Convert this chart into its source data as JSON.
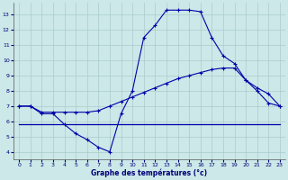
{
  "xlabel": "Graphe des températures (°c)",
  "bg_color": "#cce8e8",
  "line_color": "#0000aa",
  "grid_color": "#aacccc",
  "x_ticks": [
    0,
    1,
    2,
    3,
    4,
    5,
    6,
    7,
    8,
    9,
    10,
    11,
    12,
    13,
    14,
    15,
    16,
    17,
    18,
    19,
    20,
    21,
    22,
    23
  ],
  "y_ticks": [
    4,
    5,
    6,
    7,
    8,
    9,
    10,
    11,
    12,
    13
  ],
  "ylim": [
    3.5,
    13.8
  ],
  "xlim": [
    -0.5,
    23.5
  ],
  "line1_x": [
    0,
    1,
    2,
    3,
    4,
    5,
    6,
    7,
    8,
    9,
    10,
    11,
    12,
    13,
    14,
    15,
    16,
    17,
    18,
    19,
    20,
    21,
    22,
    23
  ],
  "line1_y": [
    7.0,
    7.0,
    6.5,
    6.5,
    5.8,
    5.2,
    4.8,
    4.3,
    4.0,
    6.5,
    8.0,
    11.5,
    12.3,
    13.3,
    13.3,
    13.3,
    13.2,
    11.5,
    10.3,
    9.8,
    8.7,
    8.0,
    7.2,
    7.0
  ],
  "line2_x": [
    0,
    1,
    2,
    3,
    4,
    5,
    6,
    7,
    8,
    9,
    10,
    11,
    12,
    13,
    14,
    15,
    16,
    17,
    18,
    19,
    20,
    21,
    22,
    23
  ],
  "line2_y": [
    7.0,
    7.0,
    6.6,
    6.6,
    6.6,
    6.6,
    6.6,
    6.7,
    7.0,
    7.3,
    7.6,
    7.9,
    8.2,
    8.5,
    8.8,
    9.0,
    9.2,
    9.4,
    9.5,
    9.5,
    8.7,
    8.2,
    7.8,
    7.0
  ],
  "line3_x": [
    0,
    23
  ],
  "line3_y": [
    5.8,
    5.8
  ]
}
